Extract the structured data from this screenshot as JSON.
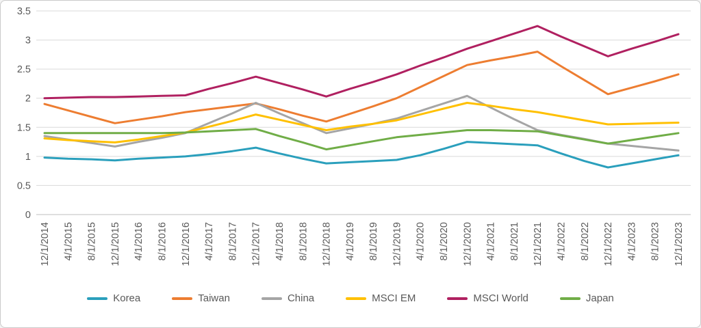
{
  "chart_data": {
    "type": "line",
    "grid": true,
    "legend_position": "bottom",
    "ylim": [
      0,
      3.5
    ],
    "yticks": [
      0,
      0.5,
      1,
      1.5,
      2,
      2.5,
      3,
      3.5
    ],
    "gridline_color": "#d9d9d9",
    "axis_line_color": "#bfbfbf",
    "tick_label_color": "#595959",
    "categories": [
      "12/1/2014",
      "4/1/2015",
      "8/1/2015",
      "12/1/2015",
      "4/1/2016",
      "8/1/2016",
      "12/1/2016",
      "4/1/2017",
      "8/1/2017",
      "12/1/2017",
      "4/1/2018",
      "8/1/2018",
      "12/1/2018",
      "4/1/2019",
      "8/1/2019",
      "12/1/2019",
      "4/1/2020",
      "8/1/2020",
      "12/1/2020",
      "4/1/2021",
      "8/1/2021",
      "12/1/2021",
      "4/1/2022",
      "8/1/2022",
      "12/1/2022",
      "4/1/2023",
      "8/1/2023",
      "12/1/2023"
    ],
    "series": [
      {
        "name": "Korea",
        "color": "#2A9FBC",
        "values": [
          0.98,
          0.96,
          0.95,
          0.93,
          0.96,
          0.98,
          1.0,
          1.04,
          1.09,
          1.15,
          1.05,
          0.96,
          0.88,
          0.9,
          0.92,
          0.94,
          1.02,
          1.13,
          1.25,
          1.23,
          1.21,
          1.19,
          1.05,
          0.92,
          0.81,
          0.88,
          0.95,
          1.02
        ]
      },
      {
        "name": "Taiwan",
        "color": "#ED7D31",
        "values": [
          1.9,
          1.79,
          1.68,
          1.57,
          1.63,
          1.69,
          1.76,
          1.81,
          1.86,
          1.91,
          1.81,
          1.7,
          1.6,
          1.73,
          1.86,
          2.0,
          2.19,
          2.38,
          2.57,
          2.65,
          2.72,
          2.8,
          2.55,
          2.31,
          2.07,
          2.18,
          2.29,
          2.41
        ]
      },
      {
        "name": "China",
        "color": "#A5A5A5",
        "values": [
          1.35,
          1.29,
          1.23,
          1.17,
          1.25,
          1.32,
          1.4,
          1.57,
          1.74,
          1.92,
          1.74,
          1.57,
          1.4,
          1.48,
          1.56,
          1.65,
          1.78,
          1.91,
          2.04,
          1.84,
          1.64,
          1.45,
          1.37,
          1.3,
          1.22,
          1.18,
          1.14,
          1.1
        ]
      },
      {
        "name": "MSCI EM",
        "color": "#FFC000",
        "values": [
          1.31,
          1.28,
          1.26,
          1.24,
          1.29,
          1.35,
          1.41,
          1.51,
          1.61,
          1.72,
          1.63,
          1.54,
          1.45,
          1.51,
          1.56,
          1.62,
          1.72,
          1.82,
          1.92,
          1.87,
          1.81,
          1.76,
          1.69,
          1.62,
          1.55,
          1.56,
          1.57,
          1.58
        ]
      },
      {
        "name": "MSCI World",
        "color": "#B02060",
        "values": [
          2.0,
          2.01,
          2.02,
          2.02,
          2.03,
          2.04,
          2.05,
          2.16,
          2.26,
          2.37,
          2.26,
          2.15,
          2.03,
          2.16,
          2.28,
          2.41,
          2.56,
          2.7,
          2.85,
          2.98,
          3.11,
          3.24,
          3.06,
          2.89,
          2.72,
          2.85,
          2.97,
          3.1
        ]
      },
      {
        "name": "Japan",
        "color": "#70AD47",
        "values": [
          1.4,
          1.4,
          1.4,
          1.4,
          1.4,
          1.4,
          1.41,
          1.43,
          1.45,
          1.47,
          1.35,
          1.24,
          1.12,
          1.19,
          1.26,
          1.33,
          1.37,
          1.41,
          1.45,
          1.45,
          1.44,
          1.43,
          1.36,
          1.29,
          1.22,
          1.28,
          1.34,
          1.4
        ]
      }
    ]
  }
}
